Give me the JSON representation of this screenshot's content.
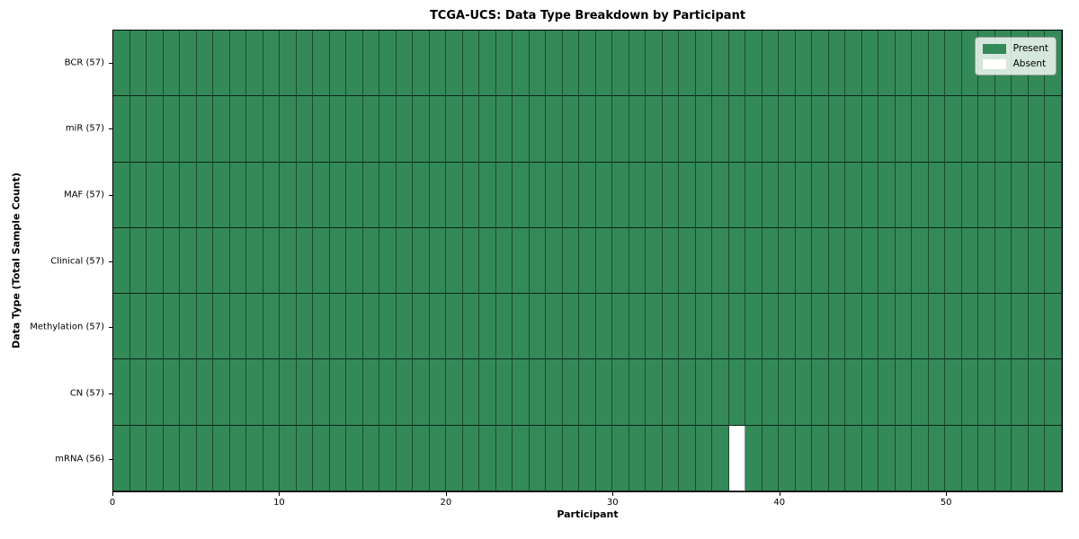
{
  "chart_data": {
    "type": "heatmap",
    "title": "TCGA-UCS: Data Type Breakdown by Participant",
    "xlabel": "Participant",
    "ylabel": "Data Type (Total Sample Count)",
    "x_ticks": [
      0,
      10,
      20,
      30,
      40,
      50
    ],
    "xlim": [
      0,
      57
    ],
    "n_participants": 57,
    "row_labels": [
      "BCR (57)",
      "miR (57)",
      "MAF (57)",
      "Clinical (57)",
      "Methylation (57)",
      "CN (57)",
      "mRNA (56)"
    ],
    "cells": {
      "default_state": "Present",
      "absent": [
        {
          "row": "mRNA (56)",
          "row_index": 6,
          "participant_index": 37
        }
      ]
    },
    "legend": {
      "position": "upper-right",
      "entries": [
        {
          "label": "Present",
          "color": "#338a58"
        },
        {
          "label": "Absent",
          "color": "#ffffff"
        }
      ]
    },
    "colors": {
      "present": "#338a58",
      "absent": "#ffffff",
      "cell_grid_line": "rgba(0,0,0,0.45)",
      "row_separator_line": "rgba(0,0,0,0.75)",
      "plot_border": "#000000",
      "background": "#ffffff"
    },
    "grid": true
  }
}
